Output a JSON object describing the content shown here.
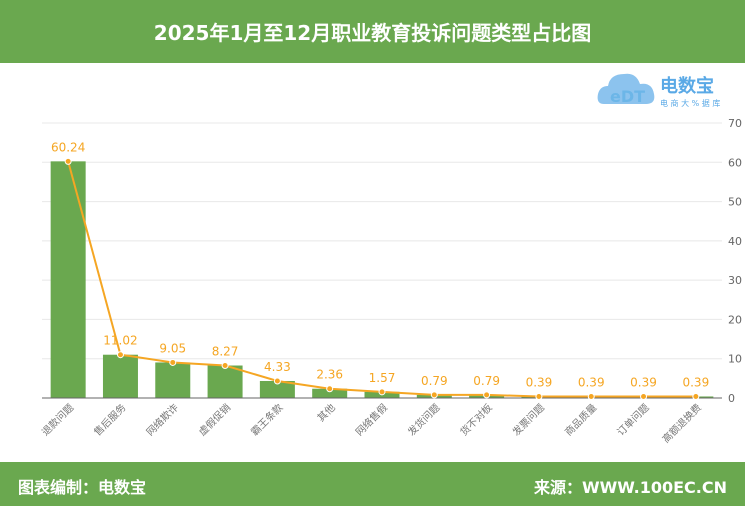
{
  "header": {
    "title": "2025年1月至12月职业教育投诉问题类型占比图"
  },
  "footer": {
    "left": "图表编制：电数宝",
    "right": "来源：WWW.100EC.CN"
  },
  "logo": {
    "name": "电数宝",
    "sub": "电商大数据库",
    "mark": "eDT"
  },
  "colors": {
    "bar": "#6aa84f",
    "line": "#f5a623",
    "header": "#6aa84f"
  },
  "chart_data": {
    "type": "bar",
    "categories": [
      "退款问题",
      "售后服务",
      "网络欺诈",
      "虚假促销",
      "霸王条款",
      "其他",
      "网络售假",
      "发货问题",
      "货不对板",
      "发票问题",
      "商品质量",
      "订单问题",
      "高额退换费"
    ],
    "series": [
      {
        "type": "bar",
        "values": [
          60.24,
          11.02,
          9.05,
          8.27,
          4.33,
          2.36,
          1.57,
          0.79,
          0.79,
          0.39,
          0.39,
          0.39,
          0.39
        ]
      },
      {
        "type": "line",
        "values": [
          60.24,
          11.02,
          9.05,
          8.27,
          4.33,
          2.36,
          1.57,
          0.79,
          0.79,
          0.39,
          0.39,
          0.39,
          0.39
        ]
      }
    ],
    "data_labels": [
      "60.24",
      "11.02",
      "9.05",
      "8.27",
      "4.33",
      "2.36",
      "1.57",
      "0.79",
      "0.79",
      "0.39",
      "0.39",
      "0.39",
      "0.39"
    ],
    "ylim": [
      0,
      70
    ],
    "yticks": [
      0,
      10,
      20,
      30,
      40,
      50,
      60,
      70
    ],
    "y_axis_side": "right",
    "grid": true
  }
}
